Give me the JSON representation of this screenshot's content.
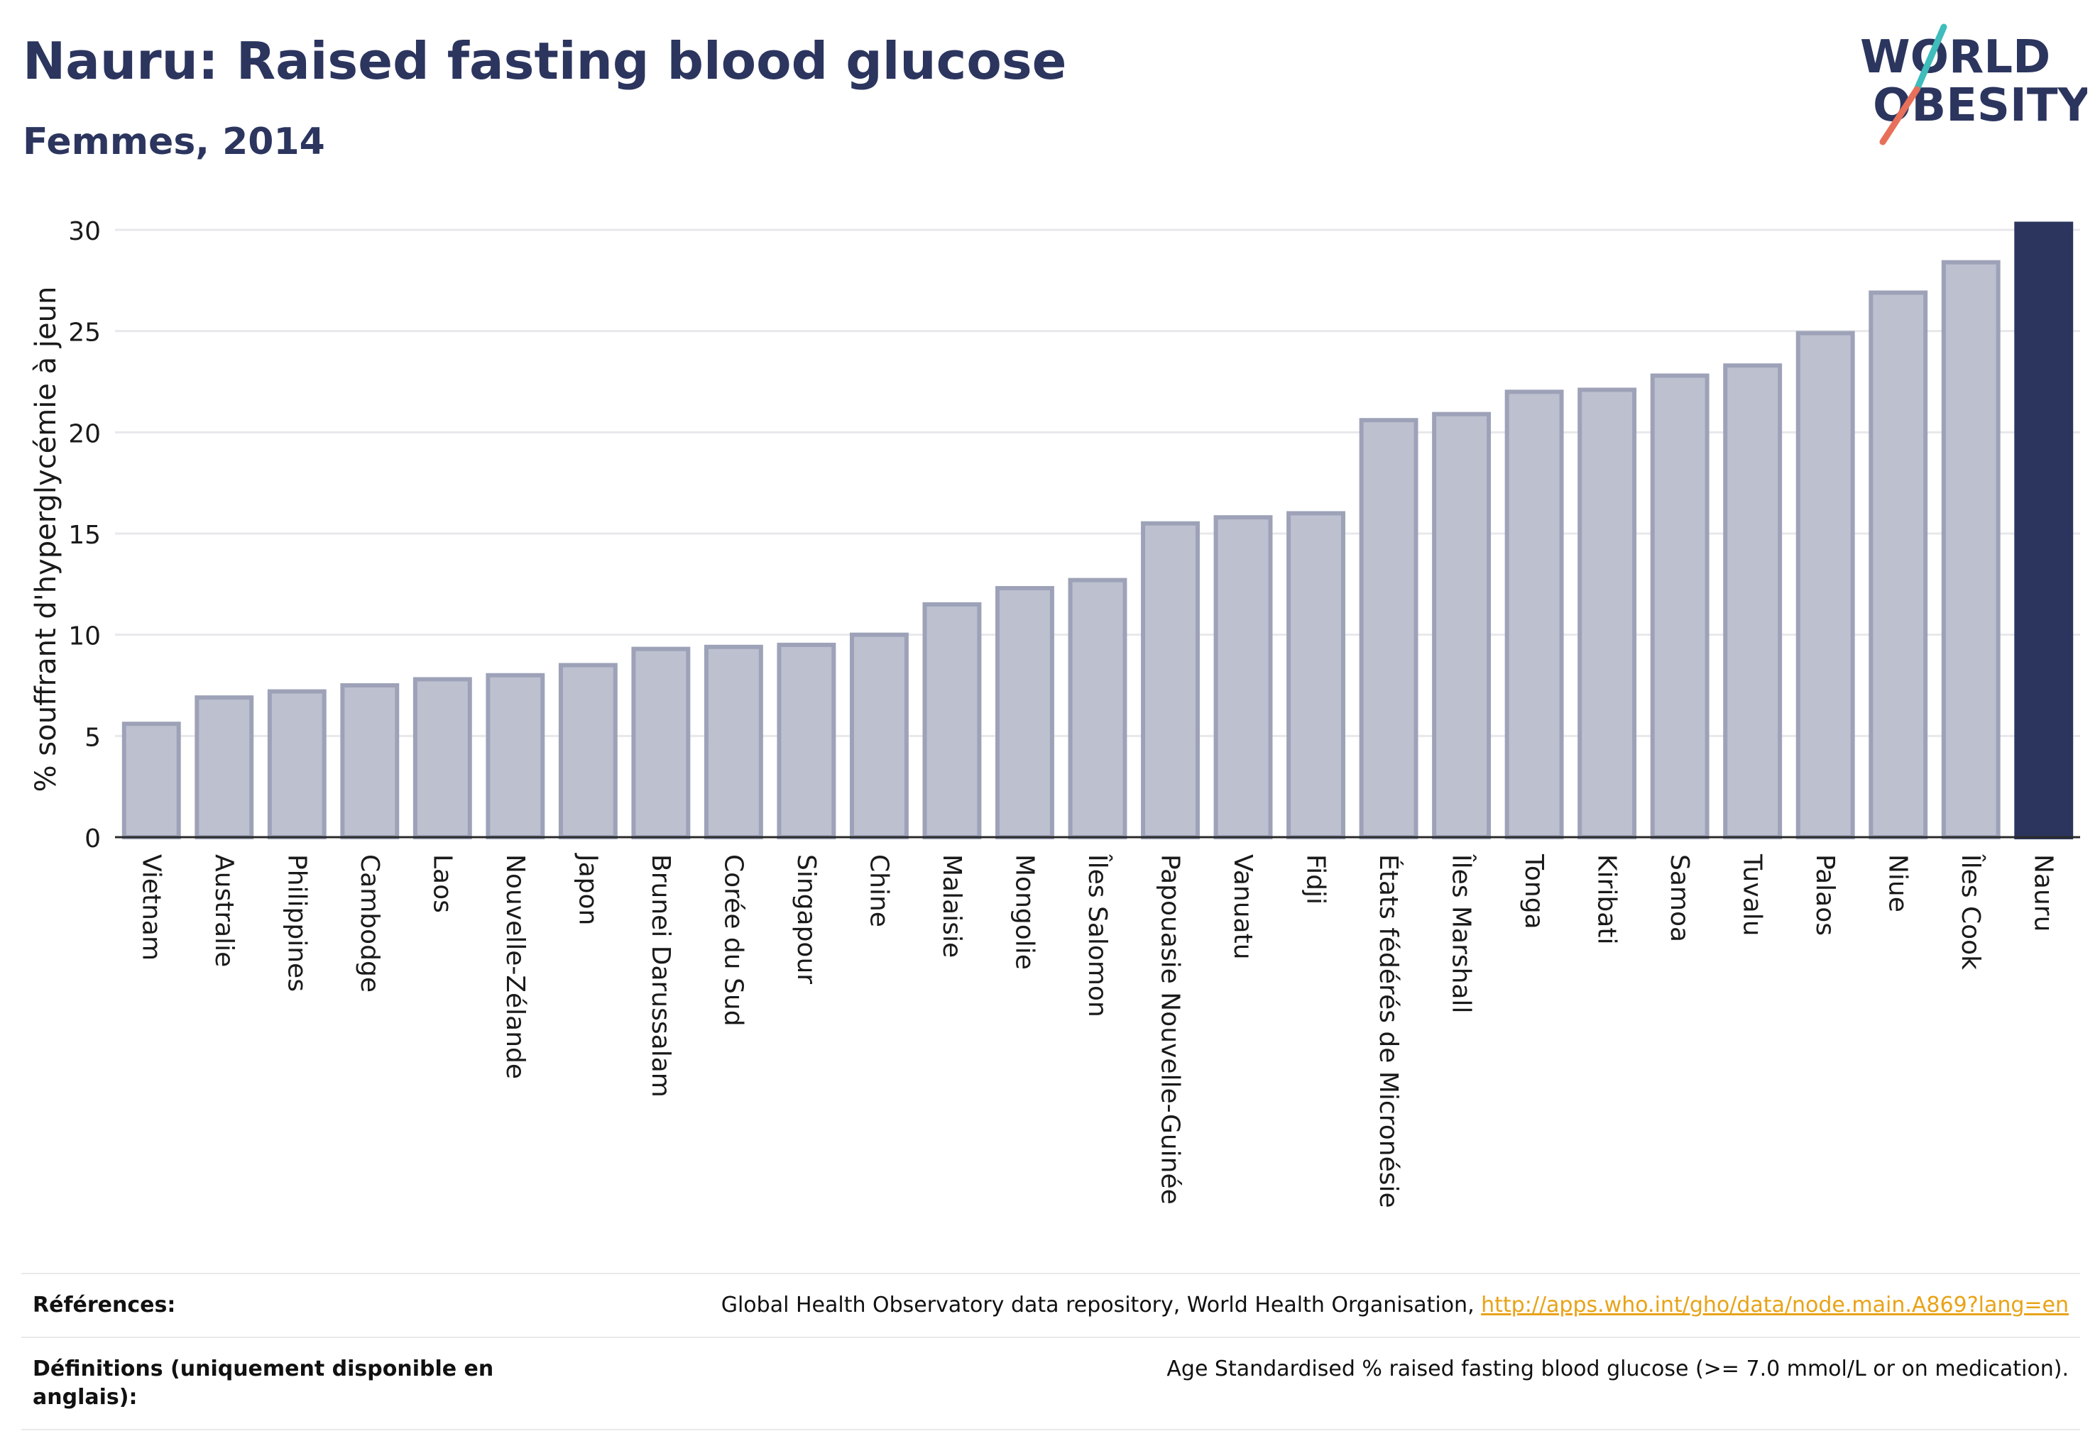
{
  "header": {
    "title": "Nauru: Raised fasting blood glucose",
    "subtitle": "Femmes, 2014"
  },
  "logo": {
    "line1": "WORLD",
    "line2": "OBESITY",
    "icon": "world-obesity-logo"
  },
  "colors": {
    "highlight_bar": "#2b355e",
    "bar_fill": "#bdc0cf",
    "bar_border": "#9da2b8",
    "title": "#2b355e",
    "link": "#e8a317"
  },
  "chart_data": {
    "type": "bar",
    "ylabel": "% souffrant d'hyperglycémie à jeun",
    "ylim": [
      0,
      30
    ],
    "yticks": [
      0,
      5,
      10,
      15,
      20,
      25,
      30
    ],
    "grid": true,
    "highlight": "Nauru",
    "categories": [
      "Vietnam",
      "Australie",
      "Philippines",
      "Cambodge",
      "Laos",
      "Nouvelle-Zélande",
      "Japon",
      "Brunei Darussalam",
      "Corée du Sud",
      "Singapour",
      "Chine",
      "Malaisie",
      "Mongolie",
      "Îles Salomon",
      "Papouasie Nouvelle-Guinée",
      "Vanuatu",
      "Fidji",
      "États fédérés de Micronésie",
      "Îles Marshall",
      "Tonga",
      "Kiribati",
      "Samoa",
      "Tuvalu",
      "Palaos",
      "Niue",
      "Îles Cook",
      "Nauru"
    ],
    "values": [
      5.6,
      6.9,
      7.2,
      7.5,
      7.8,
      8.0,
      8.5,
      9.3,
      9.4,
      9.5,
      10.0,
      11.5,
      12.3,
      12.7,
      15.5,
      15.8,
      16.0,
      20.6,
      20.9,
      22.0,
      22.1,
      22.8,
      23.3,
      24.9,
      26.9,
      28.4,
      30.3
    ]
  },
  "references": {
    "label": "Références:",
    "text": "Global Health Observatory data repository, World Health Organisation, ",
    "link": "http://apps.who.int/gho/data/node.main.A869?lang=en"
  },
  "definitions": {
    "label": "Définitions (uniquement disponible en anglais):",
    "text": "Age Standardised % raised fasting blood glucose (>= 7.0 mmol/L or on medication)."
  }
}
